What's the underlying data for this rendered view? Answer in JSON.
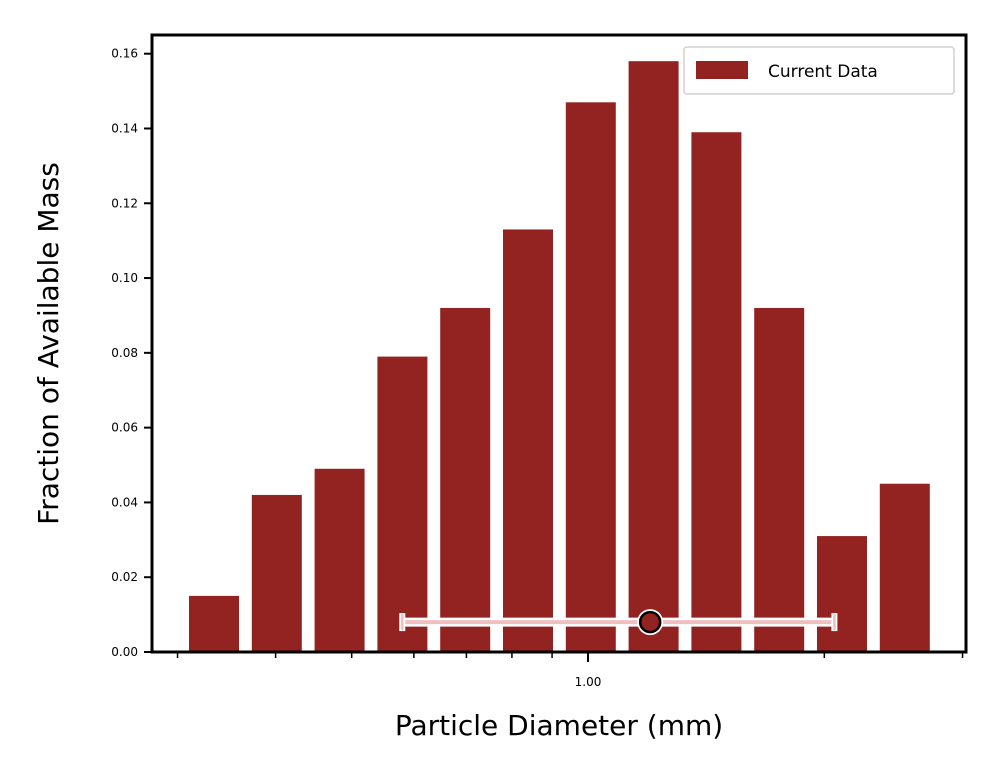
{
  "chart_data": {
    "type": "bar",
    "xlabel": "Particle Diameter (mm)",
    "ylabel": "Fraction of Available Mass",
    "x_scale": "log",
    "x_tick_labels": [
      "1.00"
    ],
    "ylim": [
      0,
      0.165
    ],
    "y_ticks": [
      "0.00",
      "0.02",
      "0.04",
      "0.06",
      "0.08",
      "0.10",
      "0.12",
      "0.14",
      "0.16"
    ],
    "grid": false,
    "legend": {
      "position": "top-right",
      "entries": [
        "Current Data"
      ]
    },
    "colors": {
      "bar": "#922320",
      "marker": "#922320",
      "errorbar": "#f0c0c0"
    },
    "series": [
      {
        "name": "Current Data",
        "values": [
          0.015,
          0.042,
          0.049,
          0.079,
          0.092,
          0.113,
          0.147,
          0.158,
          0.139,
          0.092,
          0.031,
          0.045
        ]
      }
    ],
    "summary_point": {
      "x": 1.2,
      "y": 0.008,
      "x_err_low": 0.58,
      "x_err_high": 2.06
    }
  }
}
